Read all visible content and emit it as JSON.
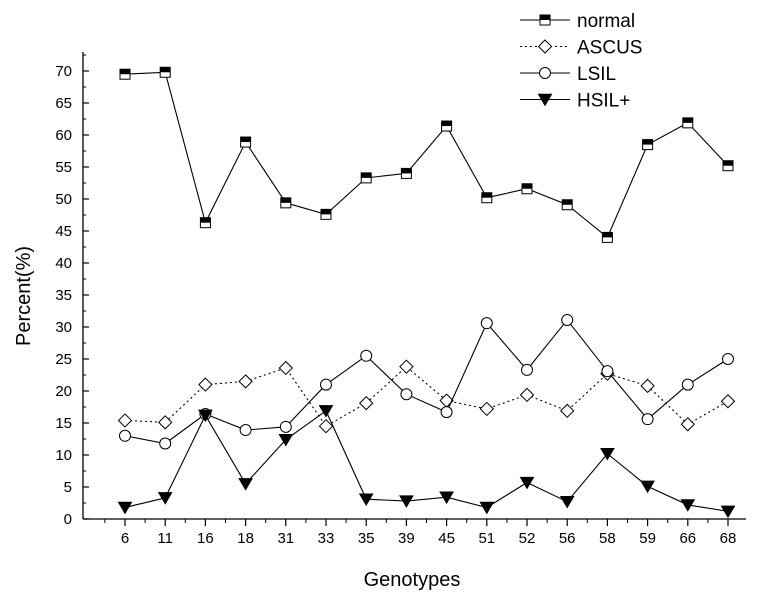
{
  "chart_data": {
    "type": "line",
    "xlabel": "Genotypes",
    "ylabel": "Percent(%)",
    "categories": [
      "6",
      "11",
      "16",
      "18",
      "31",
      "33",
      "35",
      "39",
      "45",
      "51",
      "52",
      "56",
      "58",
      "59",
      "66",
      "68"
    ],
    "ylim": [
      0,
      70
    ],
    "yticks": [
      0,
      5,
      10,
      15,
      20,
      25,
      30,
      35,
      40,
      45,
      50,
      55,
      60,
      65,
      70
    ],
    "grid": false,
    "legend_position": "top-right",
    "series": [
      {
        "name": "normal",
        "marker": "half-filled-square",
        "line": "solid",
        "color": "#000000",
        "values": [
          69.5,
          69.8,
          46.3,
          58.9,
          49.4,
          47.6,
          53.3,
          54.0,
          61.4,
          50.2,
          51.6,
          49.1,
          44.0,
          58.5,
          61.9,
          55.2
        ]
      },
      {
        "name": "ASCUS",
        "marker": "open-diamond",
        "line": "dotted",
        "color": "#000000",
        "values": [
          15.4,
          15.1,
          21.0,
          21.5,
          23.6,
          14.5,
          18.1,
          23.8,
          18.5,
          17.2,
          19.4,
          16.9,
          22.7,
          20.8,
          14.8,
          18.4
        ]
      },
      {
        "name": "LSIL",
        "marker": "open-circle",
        "line": "solid",
        "color": "#000000",
        "values": [
          13.0,
          11.8,
          16.4,
          13.9,
          14.4,
          21.0,
          25.5,
          19.5,
          16.7,
          30.6,
          23.3,
          31.1,
          23.1,
          15.6,
          21.0,
          25.0
        ]
      },
      {
        "name": "HSIL+",
        "marker": "filled-triangle-down",
        "line": "solid",
        "color": "#000000",
        "values": [
          1.8,
          3.3,
          16.2,
          5.5,
          12.4,
          16.9,
          3.1,
          2.8,
          3.4,
          1.8,
          5.7,
          2.7,
          10.2,
          5.1,
          2.2,
          1.2
        ]
      }
    ]
  }
}
